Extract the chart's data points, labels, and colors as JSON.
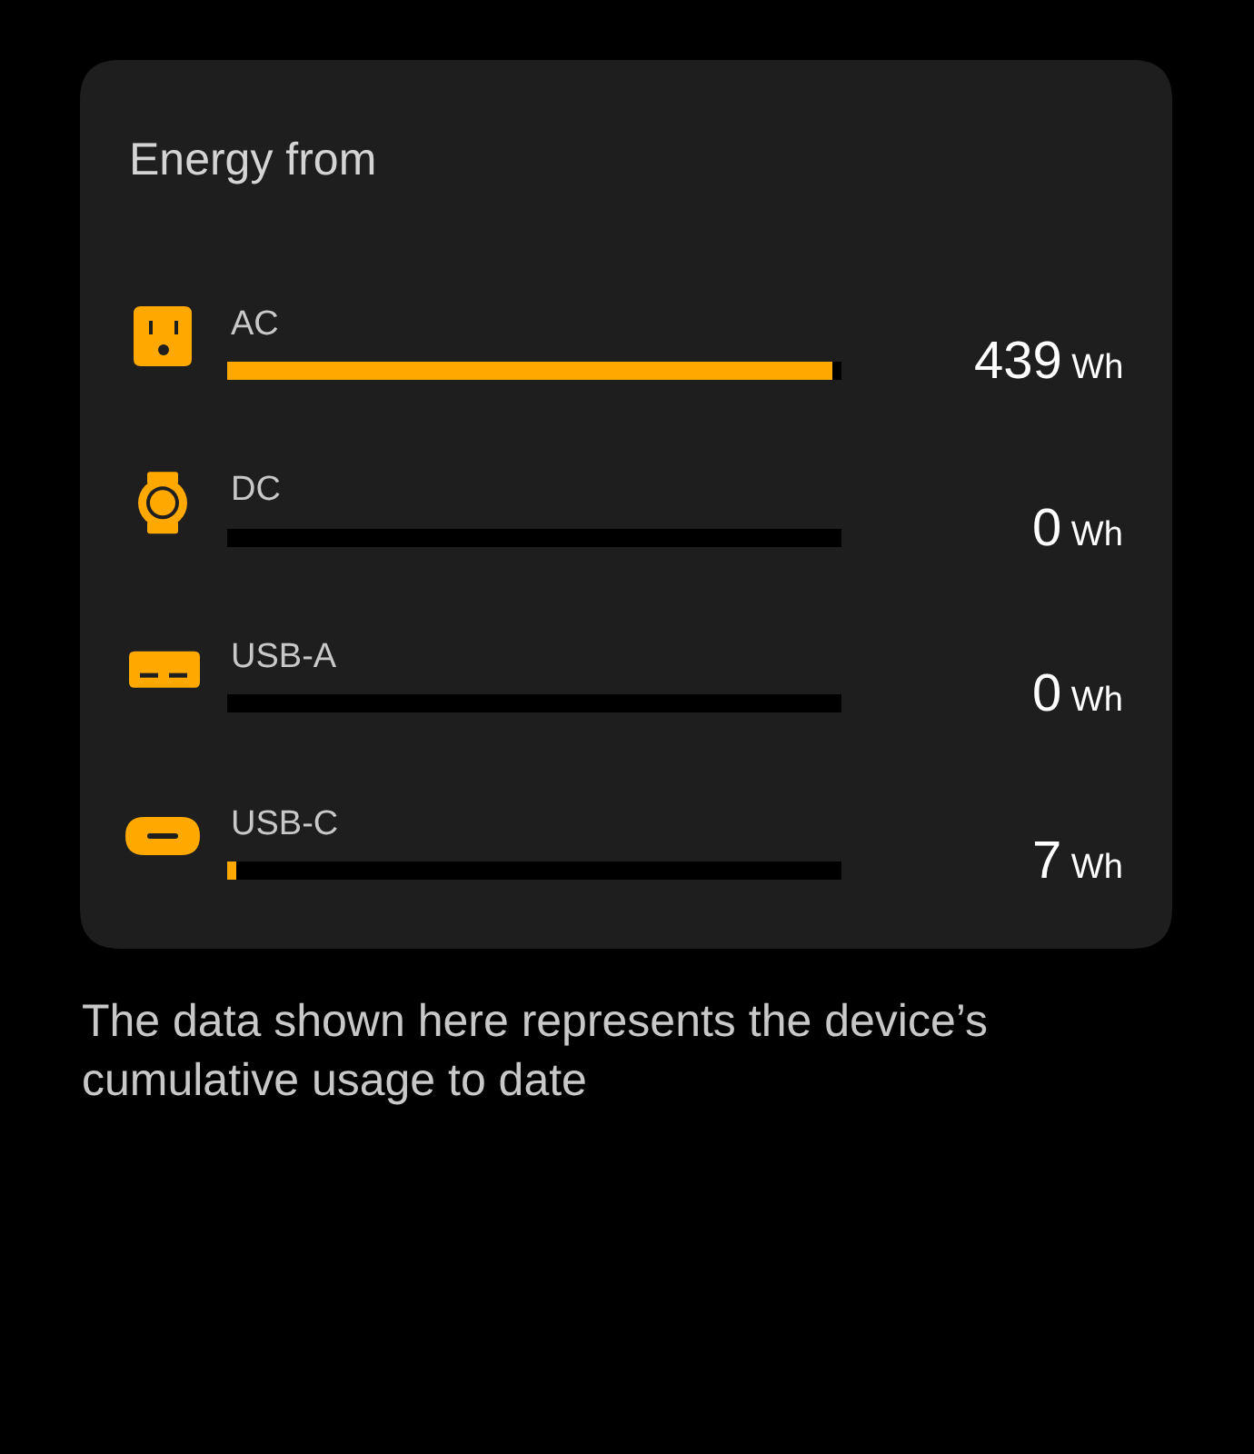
{
  "chart_data": {
    "type": "bar",
    "orientation": "horizontal",
    "stacked": true,
    "title": "Energy from",
    "categories": [
      "AC",
      "DC",
      "USB-A",
      "USB-C"
    ],
    "series": [
      {
        "color": "#ffa800",
        "values": [
          439,
          0,
          0,
          7
        ],
        "value_labels": [
          "439 Wh",
          "0 Wh",
          "0 Wh",
          "7 Wh"
        ]
      },
      {
        "color": "#000000",
        "values": [
          7,
          446,
          446,
          439
        ]
      }
    ],
    "tick_labels": "y",
    "annotations": [
      "The data shown here represents the device’s cumulative usage to date"
    ]
  }
}
